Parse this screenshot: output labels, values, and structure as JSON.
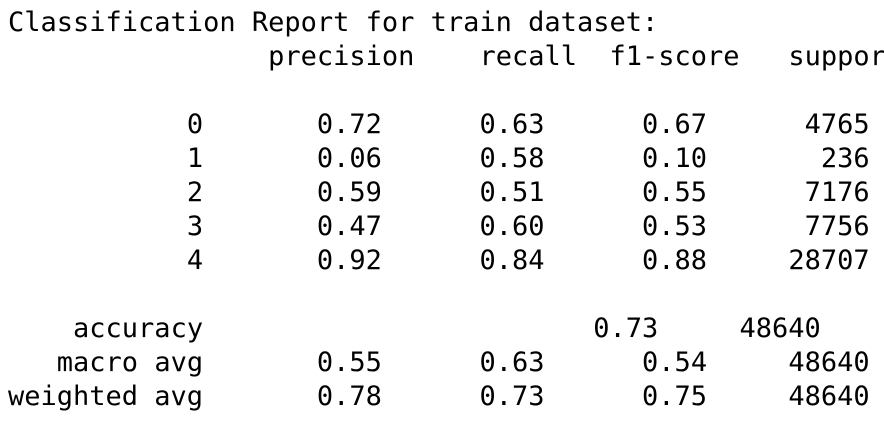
{
  "report": {
    "title": "Classification Report for train dataset:",
    "columns": [
      "precision",
      "recall",
      "f1-score",
      "support"
    ],
    "rows": [
      {
        "label": "0",
        "precision": "0.72",
        "recall": "0.63",
        "f1": "0.67",
        "support": "4765"
      },
      {
        "label": "1",
        "precision": "0.06",
        "recall": "0.58",
        "f1": "0.10",
        "support": "236"
      },
      {
        "label": "2",
        "precision": "0.59",
        "recall": "0.51",
        "f1": "0.55",
        "support": "7176"
      },
      {
        "label": "3",
        "precision": "0.47",
        "recall": "0.60",
        "f1": "0.53",
        "support": "7756"
      },
      {
        "label": "4",
        "precision": "0.92",
        "recall": "0.84",
        "f1": "0.88",
        "support": "28707"
      }
    ],
    "summary": [
      {
        "label": "accuracy",
        "precision": "",
        "recall": "",
        "f1": "0.73",
        "support": "48640"
      },
      {
        "label": "macro avg",
        "precision": "0.55",
        "recall": "0.63",
        "f1": "0.54",
        "support": "48640"
      },
      {
        "label": "weighted avg",
        "precision": "0.78",
        "recall": "0.73",
        "f1": "0.75",
        "support": "48640"
      }
    ]
  }
}
